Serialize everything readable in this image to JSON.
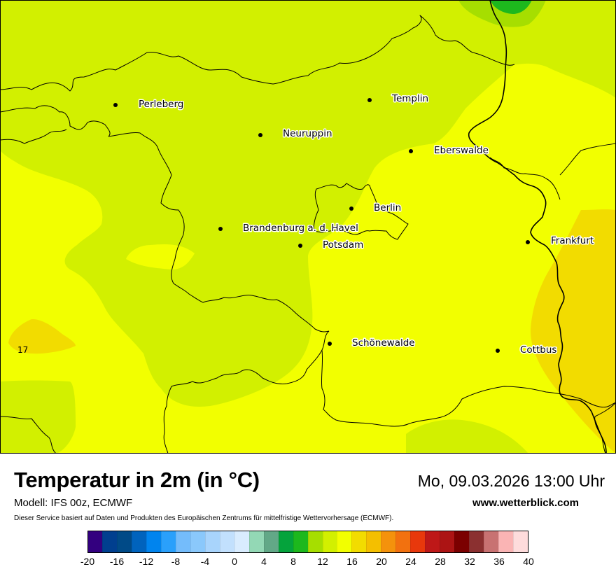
{
  "map": {
    "cities": [
      {
        "name": "Perleberg"
      },
      {
        "name": "Templin"
      },
      {
        "name": "Neuruppin"
      },
      {
        "name": "Eberswalde"
      },
      {
        "name": "Berlin"
      },
      {
        "name": "Brandenburg a. d. Havel"
      },
      {
        "name": "Potsdam"
      },
      {
        "name": "Frankfurt"
      },
      {
        "name": "Schönewalde"
      },
      {
        "name": "Cottbus"
      }
    ],
    "value_label": "17",
    "colors": {
      "band_8_10": "#1db81d",
      "band_10_12": "#a6de00",
      "band_12_14": "#d2f000",
      "band_14_16": "#f2ff00",
      "band_16_18": "#f2dc00",
      "border": "#000000"
    }
  },
  "footer": {
    "title": "Temperatur in 2m (in °C)",
    "datetime": "Mo, 09.03.2026 13:00 Uhr",
    "model": "Modell: IFS 00z, ECMWF",
    "site": "www.wetterblick.com",
    "disclaimer": "Dieser Service basiert auf Daten und Produkten des Europäischen Zentrums für mittelfristige Wettervorhersage (ECMWF)."
  },
  "legend": {
    "colors": [
      "#33007f",
      "#003f8f",
      "#004a87",
      "#0063bd",
      "#0084ee",
      "#2aa0fb",
      "#74bcfb",
      "#8ac8fb",
      "#a8d4fc",
      "#c2e0fd",
      "#d9ecfe",
      "#93d8b5",
      "#62a887",
      "#05a33c",
      "#1db81d",
      "#a6de00",
      "#d2f000",
      "#f2ff00",
      "#f2dc00",
      "#f4bf00",
      "#f4920c",
      "#f2710f",
      "#e8380c",
      "#be1818",
      "#ac1414",
      "#7b0000",
      "#8b3030",
      "#c87272",
      "#fab4b4",
      "#fedcdc"
    ],
    "ticks": [
      "-20",
      "-16",
      "-12",
      "-8",
      "-4",
      "0",
      "4",
      "8",
      "12",
      "16",
      "20",
      "24",
      "28",
      "32",
      "36",
      "40"
    ]
  }
}
